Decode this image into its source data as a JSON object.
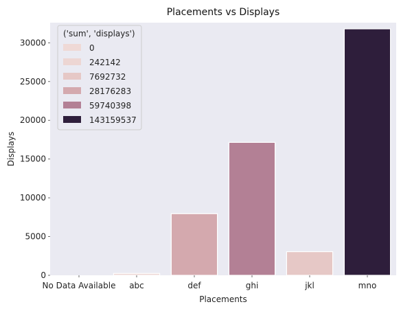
{
  "chart_data": {
    "type": "bar",
    "title": "Placements vs Displays",
    "xlabel": "Placements",
    "ylabel": "Displays",
    "categories": [
      "No Data Available",
      "abc",
      "def",
      "ghi",
      "jkl",
      "mno"
    ],
    "values": [
      0,
      242,
      7950,
      17150,
      3050,
      31800
    ],
    "hue_values": [
      "0",
      "242142",
      "28176283",
      "59740398",
      "7692732",
      "143159537"
    ],
    "ylim": [
      0,
      32600
    ],
    "yticks": [
      0,
      5000,
      10000,
      15000,
      20000,
      25000,
      30000
    ],
    "grid": false,
    "legend": {
      "title": "('sum', 'displays')",
      "placement": "top-left",
      "entries": [
        {
          "label": "0",
          "color": "#efd9d6"
        },
        {
          "label": "242142",
          "color": "#edd6d3"
        },
        {
          "label": "7692732",
          "color": "#e6c8c6"
        },
        {
          "label": "28176283",
          "color": "#d4a9ae"
        },
        {
          "label": "59740398",
          "color": "#b38095"
        },
        {
          "label": "143159537",
          "color": "#2e1e3b"
        }
      ]
    },
    "bar_colors": [
      "#efd9d6",
      "#edd6d3",
      "#d4a9ae",
      "#b38095",
      "#e6c8c6",
      "#2e1e3b"
    ],
    "plot_background": "#eaeaf2"
  }
}
